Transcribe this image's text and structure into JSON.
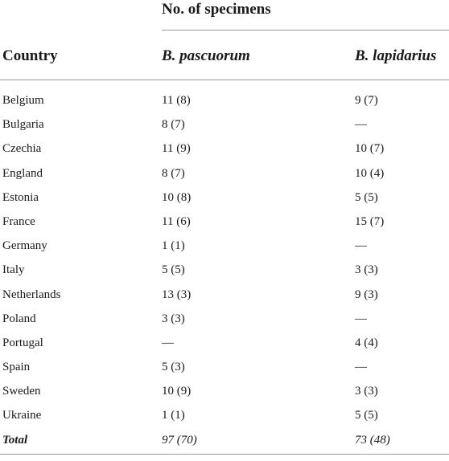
{
  "table": {
    "spanner_label": "No. of specimens",
    "headers": {
      "country": "Country",
      "col1": "B. pascuorum",
      "col2": "B. lapidarius"
    },
    "rows": [
      {
        "country": "Belgium",
        "col1": "11 (8)",
        "col2": "9 (7)"
      },
      {
        "country": "Bulgaria",
        "col1": "8 (7)",
        "col2": "—"
      },
      {
        "country": "Czechia",
        "col1": "11 (9)",
        "col2": "10 (7)"
      },
      {
        "country": "England",
        "col1": "8 (7)",
        "col2": "10 (4)"
      },
      {
        "country": "Estonia",
        "col1": "10 (8)",
        "col2": "5 (5)"
      },
      {
        "country": "France",
        "col1": "11 (6)",
        "col2": "15 (7)"
      },
      {
        "country": "Germany",
        "col1": "1 (1)",
        "col2": "—"
      },
      {
        "country": "Italy",
        "col1": "5 (5)",
        "col2": "3 (3)"
      },
      {
        "country": "Netherlands",
        "col1": "13 (3)",
        "col2": "9 (3)"
      },
      {
        "country": "Poland",
        "col1": "3 (3)",
        "col2": "—"
      },
      {
        "country": "Portugal",
        "col1": "—",
        "col2": "4 (4)"
      },
      {
        "country": "Spain",
        "col1": "5 (3)",
        "col2": "—"
      },
      {
        "country": "Sweden",
        "col1": "10 (9)",
        "col2": "3 (3)"
      },
      {
        "country": "Ukraine",
        "col1": "1 (1)",
        "col2": "5 (5)"
      }
    ],
    "total": {
      "label": "Total",
      "col1": "97 (70)",
      "col2": "73 (48)"
    }
  }
}
